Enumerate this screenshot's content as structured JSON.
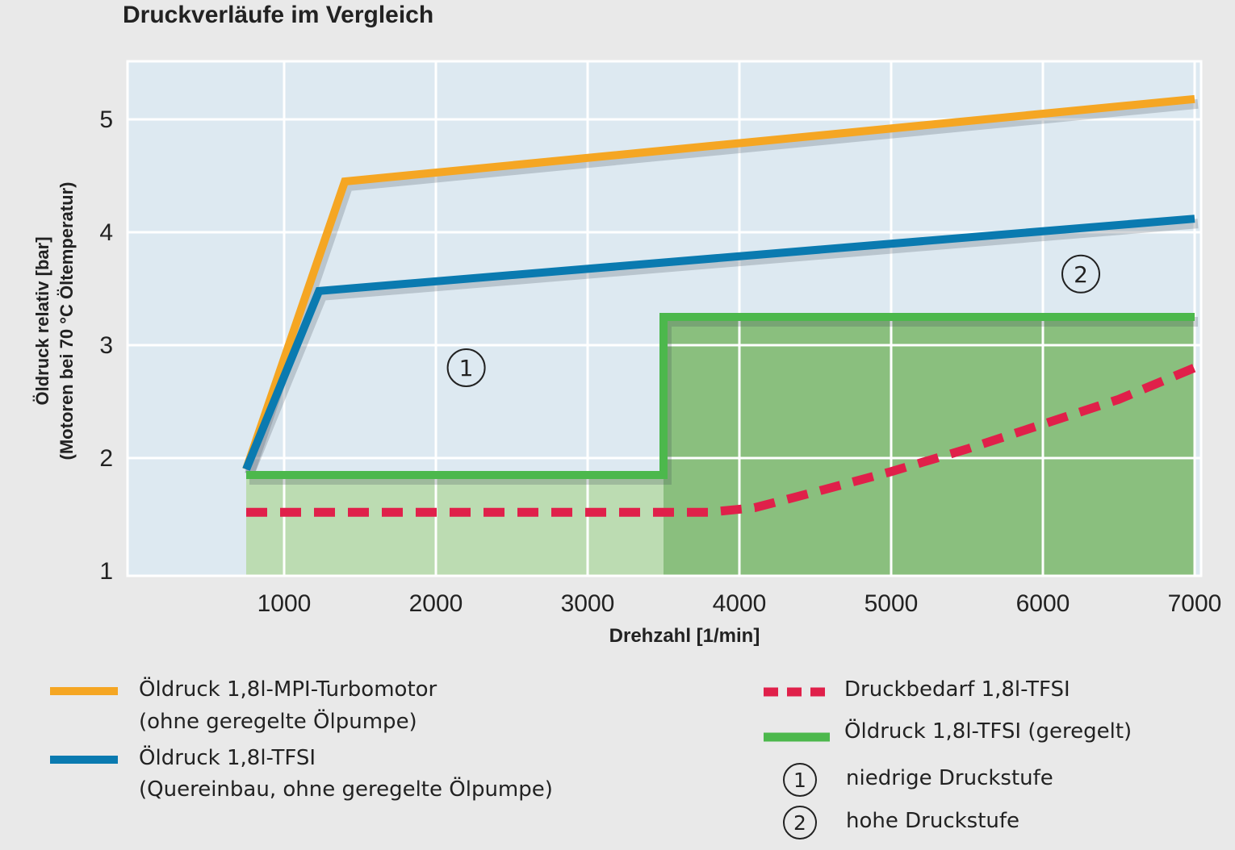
{
  "title": "Druckverläufe im Vergleich",
  "chart_data": {
    "type": "line",
    "title": "Druckverläufe im Vergleich",
    "xlabel": "Drehzahl [1/min]",
    "ylabel_line1": "Öldruck relativ [bar]",
    "ylabel_line2": "(Motoren bei 70 °C Öltemperatur)",
    "xlim": [
      0,
      7000
    ],
    "ylim": [
      1,
      5.5
    ],
    "x_ticks": [
      1000,
      2000,
      3000,
      4000,
      5000,
      6000,
      7000
    ],
    "y_ticks": [
      1,
      2,
      3,
      4,
      5
    ],
    "grid": true,
    "series": [
      {
        "name": "Öldruck 1,8l-MPI-Turbomotor",
        "note": "(ohne geregelte Ölpumpe)",
        "color": "#f5a623",
        "style": "solid",
        "points": [
          [
            750,
            1.9
          ],
          [
            1400,
            4.45
          ],
          [
            7000,
            5.18
          ]
        ]
      },
      {
        "name": "Öldruck 1,8l-TFSI",
        "note": "(Quereinbau, ohne geregelte Ölpumpe)",
        "color": "#0a7ab0",
        "style": "solid",
        "points": [
          [
            750,
            1.9
          ],
          [
            1230,
            3.48
          ],
          [
            7000,
            4.12
          ]
        ]
      },
      {
        "name": "Druckbedarf 1,8l-TFSI",
        "color": "#e0204a",
        "style": "dashed",
        "points": [
          [
            750,
            1.52
          ],
          [
            3000,
            1.52
          ],
          [
            3800,
            1.52
          ],
          [
            4100,
            1.56
          ],
          [
            4500,
            1.7
          ],
          [
            5000,
            1.88
          ],
          [
            5500,
            2.08
          ],
          [
            6000,
            2.3
          ],
          [
            6500,
            2.52
          ],
          [
            7000,
            2.8
          ]
        ]
      },
      {
        "name": "Öldruck 1,8l-TFSI (geregelt)",
        "color": "#4cb84c",
        "style": "solid",
        "points": [
          [
            750,
            1.85
          ],
          [
            3500,
            1.85
          ],
          [
            3500,
            3.25
          ],
          [
            7000,
            3.25
          ]
        ]
      }
    ],
    "regions": [
      {
        "label": "①",
        "name": "niedrige Druckstufe",
        "x_range": [
          750,
          3500
        ],
        "y_range": [
          1,
          1.85
        ],
        "color": "#bcdcb2",
        "marker_at": [
          2200,
          2.8
        ]
      },
      {
        "label": "②",
        "name": "hohe Druckstufe",
        "x_range": [
          3500,
          7000
        ],
        "y_range": [
          1,
          3.25
        ],
        "color": "#8abf7e",
        "marker_at": [
          6250,
          3.63
        ]
      }
    ],
    "legend": {
      "placement": "bottom",
      "items": [
        {
          "label": "Öldruck 1,8l-MPI-Turbomotor",
          "sublabel": "(ohne geregelte Ölpumpe)"
        },
        {
          "label": "Öldruck 1,8l-TFSI",
          "sublabel": "(Quereinbau, ohne geregelte Ölpumpe)"
        },
        {
          "label": "Druckbedarf 1,8l-TFSI"
        },
        {
          "label": "Öldruck 1,8l-TFSI (geregelt)"
        },
        {
          "symbol": "①",
          "label": "niedrige Druckstufe"
        },
        {
          "symbol": "②",
          "label": "hohe Druckstufe"
        }
      ]
    }
  },
  "colors": {
    "page_bg": "#e9e9e9",
    "plot_bg": "#dde9f1",
    "grid": "#ffffff"
  }
}
